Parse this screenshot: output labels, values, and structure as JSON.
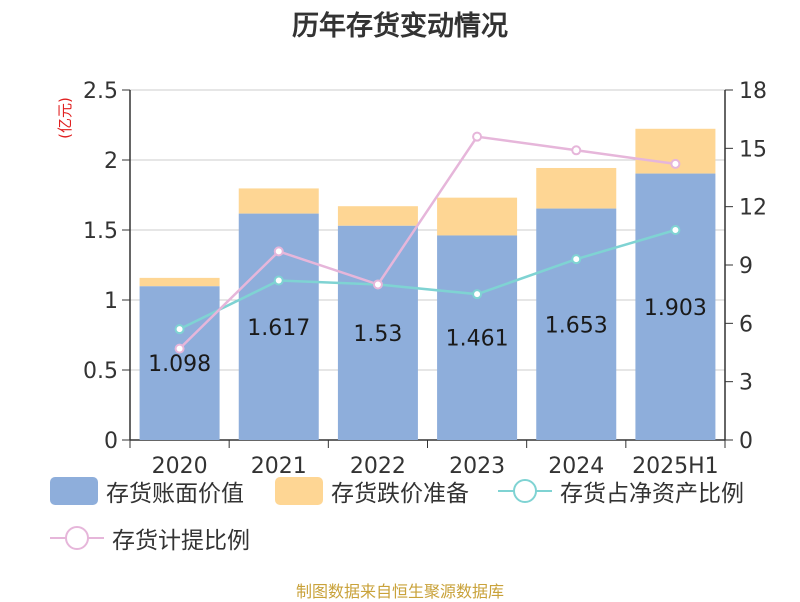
{
  "chart_data": {
    "type": "bar",
    "title": "历年存货变动情况",
    "left_axis_unit": "(亿元)",
    "categories": [
      "2020",
      "2021",
      "2022",
      "2023",
      "2024",
      "2025H1"
    ],
    "left_ylim": [
      0,
      2.5
    ],
    "left_ticks": [
      "0",
      "0.5",
      "1",
      "1.5",
      "2",
      "2.5"
    ],
    "right_ylim": [
      0,
      18
    ],
    "right_ticks": [
      "0",
      "3",
      "6",
      "9",
      "12",
      "15",
      "18"
    ],
    "grid": true,
    "stacked_bars": [
      {
        "name": "存货账面价值",
        "color": "#8eaedb",
        "values": [
          1.098,
          1.617,
          1.53,
          1.461,
          1.653,
          1.903
        ],
        "labels": [
          "1.098",
          "1.617",
          "1.53",
          "1.461",
          "1.653",
          "1.903"
        ]
      },
      {
        "name": "存货跌价准备",
        "color": "#fed694",
        "values": [
          0.06,
          0.18,
          0.14,
          0.27,
          0.29,
          0.32
        ]
      }
    ],
    "lines": [
      {
        "name": "存货占净资产比例",
        "color": "#7fd3d3",
        "axis": "right",
        "values": [
          5.7,
          8.2,
          8.0,
          7.5,
          9.3,
          10.8
        ]
      },
      {
        "name": "存货计提比例",
        "color": "#e6b6da",
        "axis": "right",
        "values": [
          4.7,
          9.7,
          8.0,
          15.6,
          14.9,
          14.2
        ]
      }
    ],
    "legend_position": "bottom"
  },
  "source": "制图数据来自恒生聚源数据库"
}
